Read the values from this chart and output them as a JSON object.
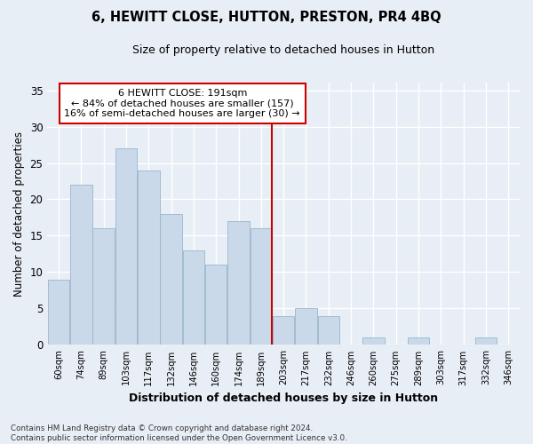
{
  "title": "6, HEWITT CLOSE, HUTTON, PRESTON, PR4 4BQ",
  "subtitle": "Size of property relative to detached houses in Hutton",
  "xlabel": "Distribution of detached houses by size in Hutton",
  "ylabel": "Number of detached properties",
  "categories": [
    "60sqm",
    "74sqm",
    "89sqm",
    "103sqm",
    "117sqm",
    "132sqm",
    "146sqm",
    "160sqm",
    "174sqm",
    "189sqm",
    "203sqm",
    "217sqm",
    "232sqm",
    "246sqm",
    "260sqm",
    "275sqm",
    "289sqm",
    "303sqm",
    "317sqm",
    "332sqm",
    "346sqm"
  ],
  "values": [
    9,
    22,
    16,
    27,
    24,
    18,
    13,
    11,
    17,
    16,
    4,
    5,
    4,
    0,
    1,
    0,
    1,
    0,
    0,
    1,
    0
  ],
  "bar_color": "#c9d9ea",
  "bar_edgecolor": "#9ab5cb",
  "vline_index": 9.5,
  "vline_color": "#cc0000",
  "annotation_text": "6 HEWITT CLOSE: 191sqm\n← 84% of detached houses are smaller (157)\n16% of semi-detached houses are larger (30) →",
  "annotation_box_color": "#ffffff",
  "annotation_box_edgecolor": "#cc0000",
  "ylim": [
    0,
    36
  ],
  "yticks": [
    0,
    5,
    10,
    15,
    20,
    25,
    30,
    35
  ],
  "background_color": "#e8eef5",
  "plot_background": "#e8eef5",
  "grid_color": "#ffffff",
  "title_fontsize": 10,
  "subtitle_fontsize": 9,
  "footnote": "Contains HM Land Registry data © Crown copyright and database right 2024.\nContains public sector information licensed under the Open Government Licence v3.0."
}
